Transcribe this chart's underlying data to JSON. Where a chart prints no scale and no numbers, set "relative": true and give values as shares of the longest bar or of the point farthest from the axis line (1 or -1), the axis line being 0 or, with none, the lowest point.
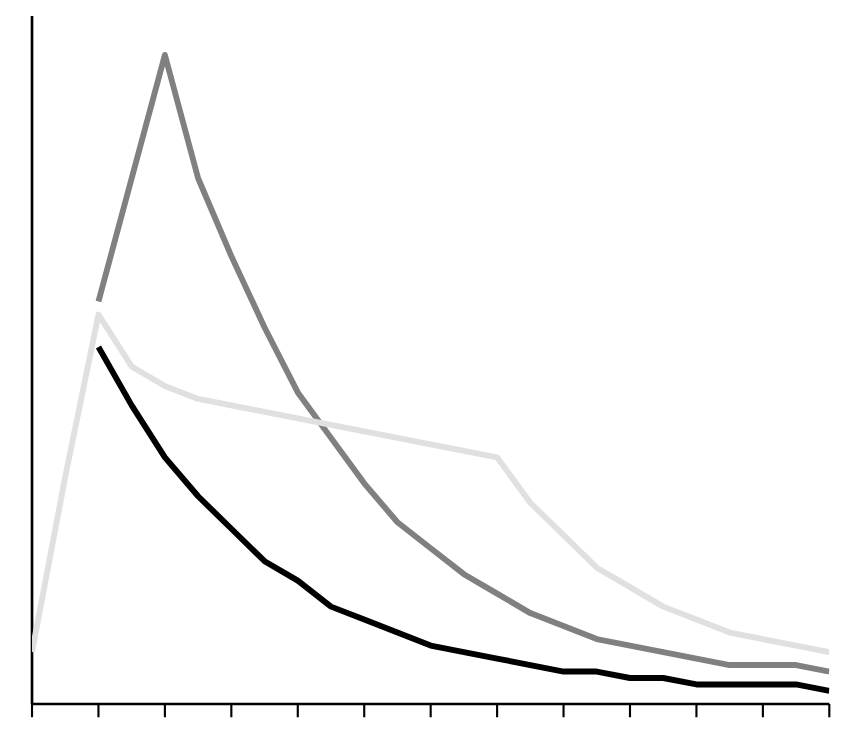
{
  "chart_data": {
    "type": "line",
    "relative": true,
    "marker": "none",
    "line_style": "solid",
    "grid": false,
    "categories": [
      null,
      null,
      null,
      null,
      null,
      null,
      null,
      null,
      null,
      null,
      null,
      null,
      null,
      null,
      null,
      null,
      null,
      null,
      null,
      null,
      null,
      null,
      null,
      null,
      null
    ],
    "series": [
      {
        "color": "#000000",
        "values": [
          null,
          null,
          0.55,
          0.46,
          0.38,
          0.32,
          0.27,
          0.22,
          0.19,
          0.15,
          0.13,
          0.11,
          0.09,
          0.08,
          0.07,
          0.06,
          0.05,
          0.05,
          0.04,
          0.04,
          0.03,
          0.03,
          0.03,
          0.03,
          0.02
        ]
      },
      {
        "color": "#808080",
        "values": [
          null,
          null,
          0.62,
          0.81,
          1.0,
          0.81,
          0.69,
          0.58,
          0.48,
          0.41,
          0.34,
          0.28,
          0.24,
          0.2,
          0.17,
          0.14,
          0.12,
          0.1,
          0.09,
          0.08,
          0.07,
          0.06,
          0.06,
          0.06,
          0.05
        ]
      },
      {
        "color": "#e0e0e0",
        "values": [
          0.08,
          0.35,
          0.6,
          0.52,
          0.49,
          0.47,
          0.46,
          0.45,
          0.44,
          0.43,
          0.42,
          0.41,
          0.4,
          0.39,
          0.38,
          0.31,
          0.26,
          0.21,
          0.18,
          0.15,
          0.13,
          0.11,
          0.1,
          0.09,
          0.08
        ]
      }
    ]
  }
}
